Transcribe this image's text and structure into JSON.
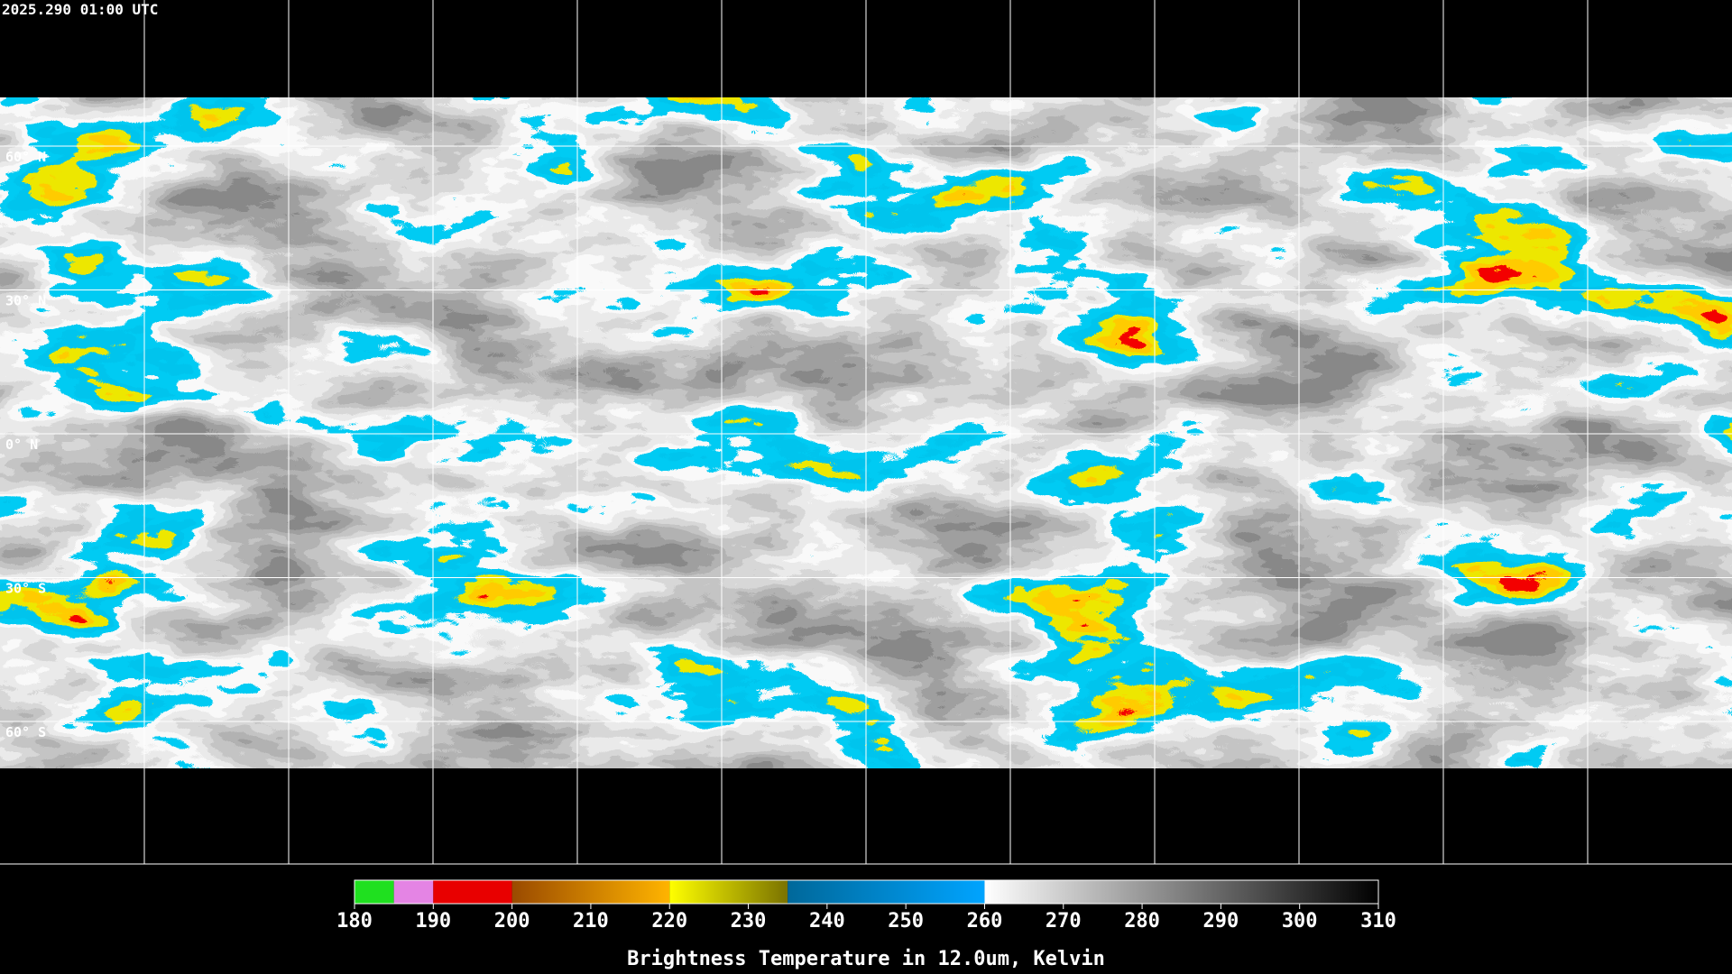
{
  "timestamp": "2025.290 01:00 UTC",
  "latitude_labels": [
    "60° N",
    "30° N",
    "0° N",
    "30° S",
    "60° S"
  ],
  "colorbar": {
    "title": "Brightness Temperature in 12.0um, Kelvin",
    "ticks": [
      180,
      190,
      200,
      210,
      220,
      230,
      240,
      250,
      260,
      270,
      280,
      290,
      300,
      310
    ],
    "segments": [
      {
        "from": 180,
        "to": 185,
        "colors": [
          "#1fe01f",
          "#1fe01f"
        ]
      },
      {
        "from": 185,
        "to": 190,
        "colors": [
          "#e484e4",
          "#e484e4"
        ]
      },
      {
        "from": 190,
        "to": 200,
        "colors": [
          "#e80000",
          "#e80000"
        ]
      },
      {
        "from": 200,
        "to": 220,
        "colors": [
          "#9a4a00",
          "#ffb400"
        ]
      },
      {
        "from": 220,
        "to": 235,
        "colors": [
          "#ffff00",
          "#7a7200"
        ]
      },
      {
        "from": 235,
        "to": 260,
        "colors": [
          "#00689a",
          "#00a4ff"
        ]
      },
      {
        "from": 260,
        "to": 310,
        "colors": [
          "#ffffff",
          "#000000"
        ]
      }
    ]
  }
}
